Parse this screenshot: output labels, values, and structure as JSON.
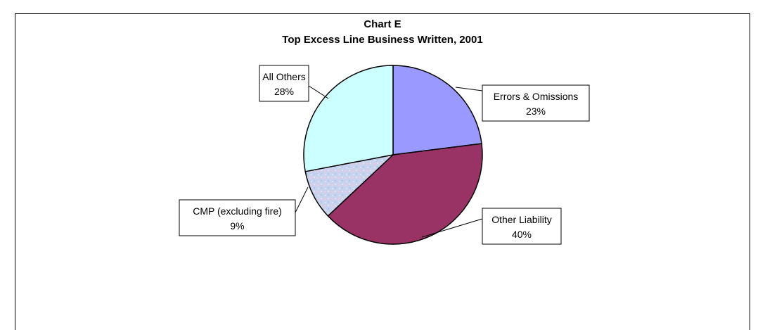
{
  "chart_data": {
    "type": "pie",
    "title": "Chart E",
    "subtitle": "Top Excess Line Business Written, 2001",
    "slices": [
      {
        "label": "Errors & Omissions",
        "value": 23,
        "value_label": "23%",
        "color": "#9999ff"
      },
      {
        "label": "Other Liability",
        "value": 40,
        "value_label": "40%",
        "color": "#993366"
      },
      {
        "label": "CMP (excluding fire)",
        "value": 9,
        "value_label": "9%",
        "color": "#c8d4ee"
      },
      {
        "label": "All Others",
        "value": 28,
        "value_label": "28%",
        "color": "#ccffff"
      }
    ],
    "start_angle": "12 o'clock",
    "direction": "clockwise",
    "legend": "none (callout labels)"
  }
}
